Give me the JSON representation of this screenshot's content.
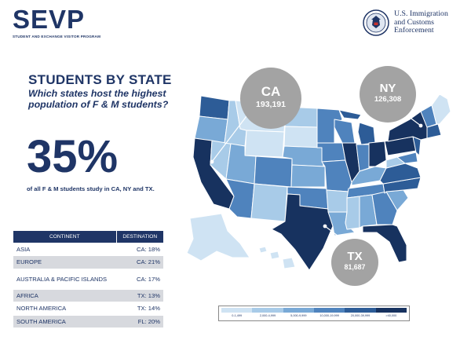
{
  "header": {
    "logo": "SEVP",
    "logo_subtitle": "STUDENT AND EXCHANGE VISITOR PROGRAM",
    "agency_line1": "U.S. Immigration",
    "agency_line2": "and Customs",
    "agency_line3": "Enforcement",
    "seal_icon": "dhs-seal-icon"
  },
  "intro": {
    "heading": "STUDENTS BY STATE",
    "question": "Which states host the highest population of F & M students?"
  },
  "stat": {
    "value": "35%",
    "caption": "of all F & M students study in CA, NY and TX."
  },
  "table": {
    "headers": [
      "CONTINENT",
      "DESTINATION"
    ],
    "rows": [
      {
        "continent": "ASIA",
        "destination": "CA: 18%"
      },
      {
        "continent": "EUROPE",
        "destination": "CA: 21%"
      },
      {
        "continent": "AUSTRALIA & PACIFIC ISLANDS",
        "destination": "CA: 17%"
      },
      {
        "continent": "AFRICA",
        "destination": "TX: 13%"
      },
      {
        "continent": "NORTH AMERICA",
        "destination": "TX: 14%"
      },
      {
        "continent": "SOUTH AMERICA",
        "destination": "FL: 20%"
      }
    ]
  },
  "callouts": [
    {
      "state": "CA",
      "count": "193,191"
    },
    {
      "state": "NY",
      "count": "126,308"
    },
    {
      "state": "TX",
      "count": "81,687"
    }
  ],
  "legend": {
    "labels": [
      "0-1,499",
      "2,000-4,999",
      "5,000-9,999",
      "10,000-19,999",
      "20,000-39,999",
      ">40,000"
    ],
    "colors": [
      "#cfe3f3",
      "#a8cbe8",
      "#79a9d6",
      "#4f83bd",
      "#2d5c97",
      "#17325f"
    ]
  },
  "colors": {
    "navy": "#1f3566",
    "callout_gray": "#a3a3a3",
    "row_shade": "#d7d9de"
  }
}
